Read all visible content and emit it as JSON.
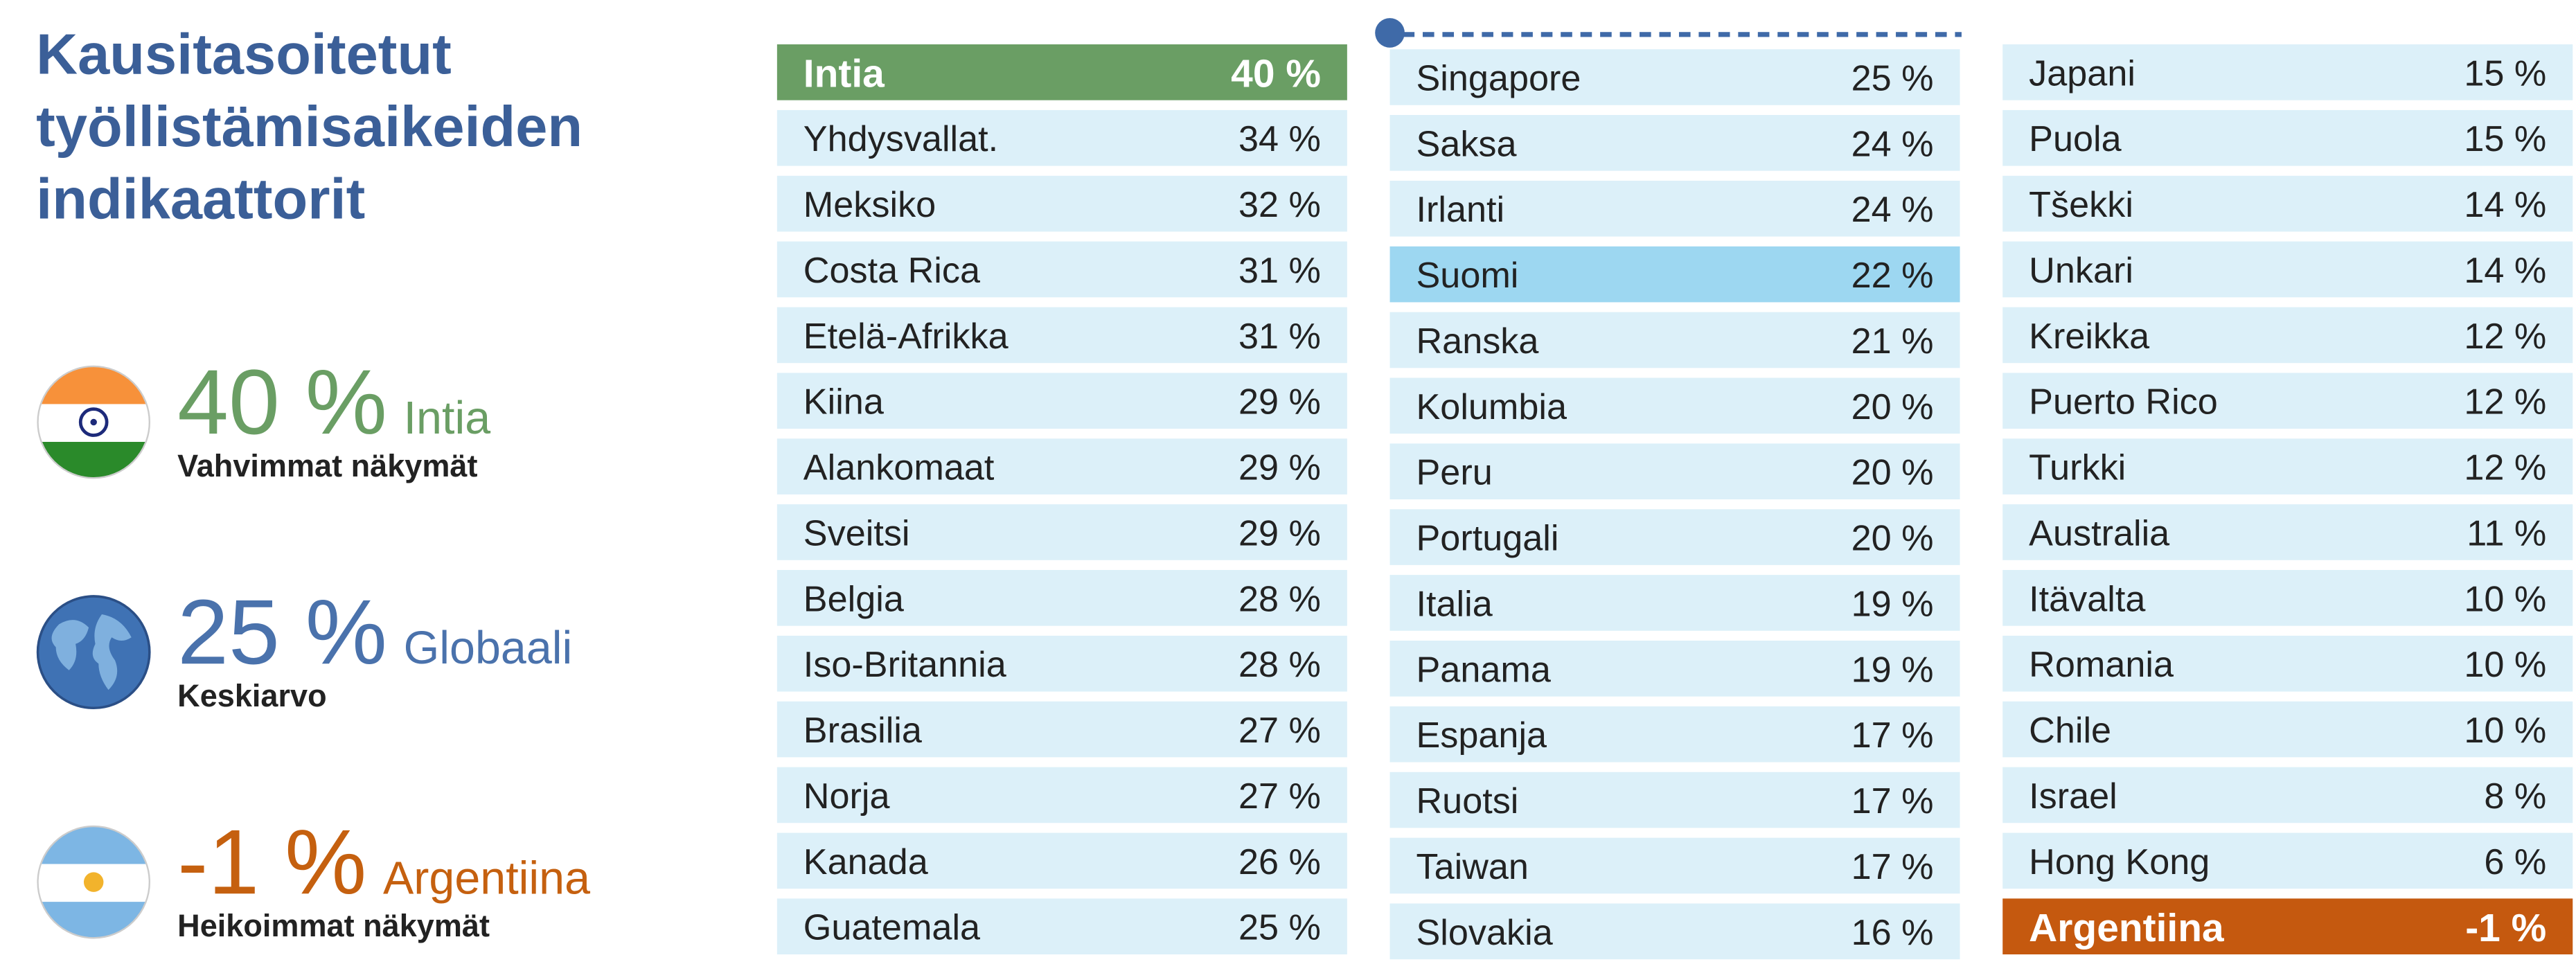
{
  "title": "Kausitasoitetut työllistämisaikeiden indikaattorit",
  "highlights": [
    {
      "value": "40 %",
      "name": "Intia",
      "caption": "Vahvimmat näkymät"
    },
    {
      "value": "25 %",
      "name": "Globaali",
      "caption": "Keskiarvo"
    },
    {
      "value": "-1 %",
      "name": "Argentiina",
      "caption": "Heikoimmat näkymät"
    }
  ],
  "table": {
    "columns": [
      [
        [
          "Intia",
          "40 %"
        ],
        [
          "Yhdysvallat.",
          "34 %"
        ],
        [
          "Meksiko",
          "32 %"
        ],
        [
          "Costa Rica",
          "31 %"
        ],
        [
          "Etelä-Afrikka",
          "31 %"
        ],
        [
          "Kiina",
          "29 %"
        ],
        [
          "Alankomaat",
          "29 %"
        ],
        [
          "Sveitsi",
          "29 %"
        ],
        [
          "Belgia",
          "28 %"
        ],
        [
          "Iso-Britannia",
          "28 %"
        ],
        [
          "Brasilia",
          "27 %"
        ],
        [
          "Norja",
          "27 %"
        ],
        [
          "Kanada",
          "26 %"
        ],
        [
          "Guatemala",
          "25 %"
        ]
      ],
      [
        [
          "Singapore",
          "25 %"
        ],
        [
          "Saksa",
          "24 %"
        ],
        [
          "Irlanti",
          "24 %"
        ],
        [
          "Suomi",
          "22 %"
        ],
        [
          "Ranska",
          "21 %"
        ],
        [
          "Kolumbia",
          "20 %"
        ],
        [
          "Peru",
          "20 %"
        ],
        [
          "Portugali",
          "20 %"
        ],
        [
          "Italia",
          "19 %"
        ],
        [
          "Panama",
          "19 %"
        ],
        [
          "Espanja",
          "17 %"
        ],
        [
          "Ruotsi",
          "17 %"
        ],
        [
          "Taiwan",
          "17 %"
        ],
        [
          "Slovakia",
          "16 %"
        ]
      ],
      [
        [
          "Japani",
          "15 %"
        ],
        [
          "Puola",
          "15 %"
        ],
        [
          "Tšekki",
          "14 %"
        ],
        [
          "Unkari",
          "14 %"
        ],
        [
          "Kreikka",
          "12 %"
        ],
        [
          "Puerto Rico",
          "12 %"
        ],
        [
          "Turkki",
          "12 %"
        ],
        [
          "Australia",
          "11 %"
        ],
        [
          "Itävalta",
          "10 %"
        ],
        [
          "Romania",
          "10 %"
        ],
        [
          "Chile",
          "10 %"
        ],
        [
          "Israel",
          "8 %"
        ],
        [
          "Hong Kong",
          "6 %"
        ],
        [
          "Argentiina",
          "-1 %"
        ]
      ]
    ]
  }
}
